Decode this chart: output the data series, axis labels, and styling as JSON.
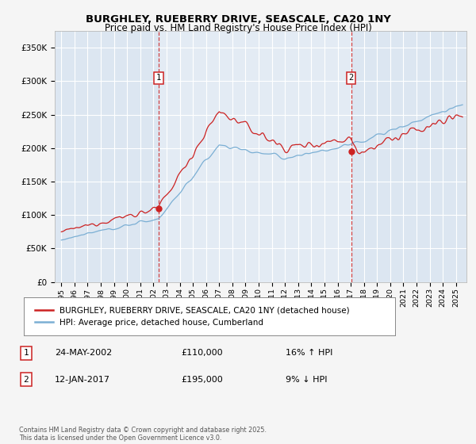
{
  "title": "BURGHLEY, RUEBERRY DRIVE, SEASCALE, CA20 1NY",
  "subtitle": "Price paid vs. HM Land Registry's House Price Index (HPI)",
  "legend_line1": "BURGHLEY, RUEBERRY DRIVE, SEASCALE, CA20 1NY (detached house)",
  "legend_line2": "HPI: Average price, detached house, Cumberland",
  "footer": "Contains HM Land Registry data © Crown copyright and database right 2025.\nThis data is licensed under the Open Government Licence v3.0.",
  "sale1_label": "1",
  "sale1_date": "24-MAY-2002",
  "sale1_price": "£110,000",
  "sale1_hpi": "16% ↑ HPI",
  "sale2_label": "2",
  "sale2_date": "12-JAN-2017",
  "sale2_price": "£195,000",
  "sale2_hpi": "9% ↓ HPI",
  "bg_color": "#dce6f1",
  "bg_color_light": "#eaf0f8",
  "red_color": "#cc2222",
  "blue_color": "#7bafd4",
  "grid_color": "#ffffff",
  "sale1_x": 2002.39,
  "sale2_x": 2017.03,
  "sale1_y": 110000,
  "sale2_y": 195000,
  "ylim": [
    0,
    375000
  ],
  "xlim_start": 1994.5,
  "xlim_end": 2025.8
}
